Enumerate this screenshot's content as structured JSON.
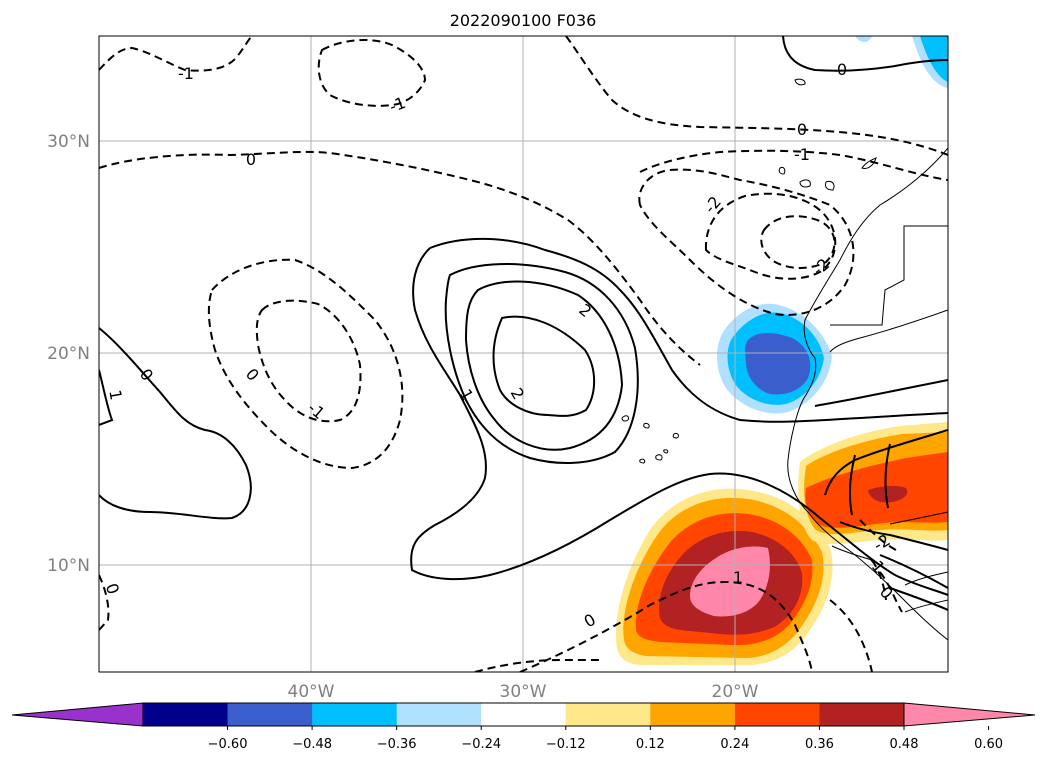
{
  "title": "2022090100 F036",
  "axes": {
    "lat_labels": [
      "30°N",
      "20°N",
      "10°N"
    ],
    "lon_labels": [
      "40°W",
      "30°W",
      "20°W"
    ]
  },
  "colorbar": {
    "tick_labels": [
      "−0.60",
      "−0.48",
      "−0.36",
      "−0.24",
      "−0.12",
      "0.12",
      "0.24",
      "0.36",
      "0.48",
      "0.60"
    ],
    "colors": [
      "#9932cc",
      "#00008b",
      "#3a5fcd",
      "#00bfff",
      "#b0e0ff",
      "#ffffff",
      "#ffe88a",
      "#ffa500",
      "#ff4500",
      "#b22222",
      "#ff88aa"
    ]
  },
  "contour_labels": {
    "neg1_nw": "-1",
    "neg1_top": "-1",
    "zero_nw": "0",
    "zero_ne": "0",
    "zero_top": "0",
    "neg1_ne": "-1",
    "neg2_ne_a": "-2",
    "neg2_ne_b": "-2",
    "zero_w": "0",
    "one_w": "1",
    "zero_mid": "0",
    "neg1_mid": "-1",
    "two_a": "2",
    "two_b": "2",
    "one_c": "1",
    "zero_sw": "0",
    "zero_s": "0",
    "one_s": "1",
    "neg1_se": "-1",
    "neg2_se": "-2",
    "zero_se": "0"
  },
  "colors": {
    "grid": "#b0b0b0",
    "contour": "#000000",
    "axis_text": "#808080"
  }
}
